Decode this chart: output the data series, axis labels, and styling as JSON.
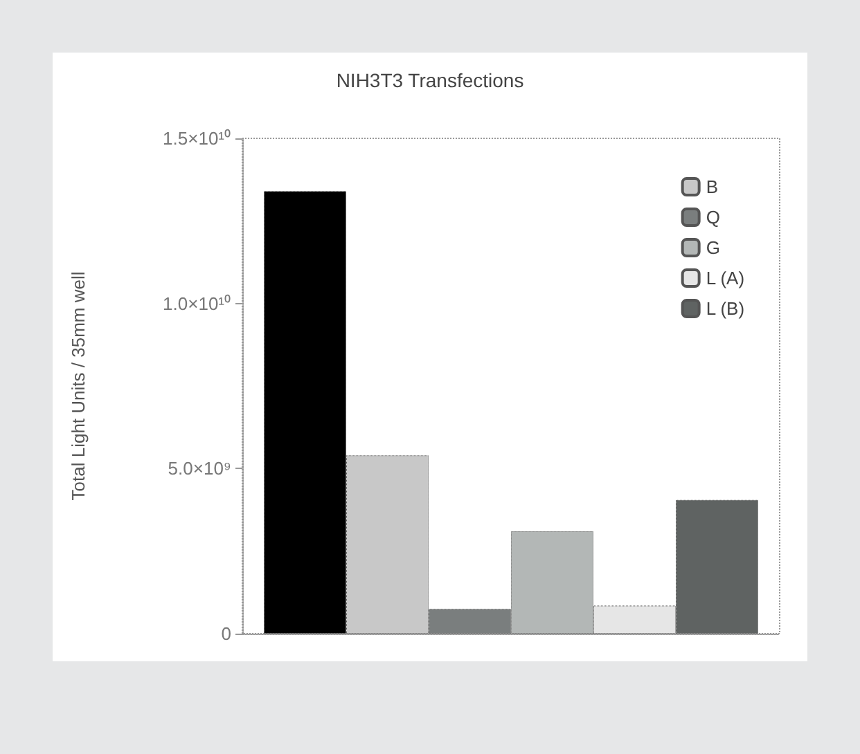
{
  "chart_data": {
    "type": "bar",
    "title": "NIH3T3 Transfections",
    "ylabel": "Total Light Units / 35mm well",
    "categories": [
      null
    ],
    "series": [
      {
        "color": "#000000",
        "values": [
          13400000000
        ]
      },
      {
        "name": "B",
        "color": "#c8c8c8",
        "values": [
          5400000000
        ]
      },
      {
        "name": "Q",
        "color": "#7a7e7e",
        "values": [
          750000000
        ]
      },
      {
        "name": "G",
        "color": "#b3b7b6",
        "values": [
          3100000000
        ]
      },
      {
        "name": "L (A)",
        "color": "#e6e6e6",
        "values": [
          850000000
        ]
      },
      {
        "name": "L (B)",
        "color": "#5f6362",
        "values": [
          4050000000
        ]
      }
    ],
    "ylim": [
      0,
      15000000000
    ],
    "yticks": [
      0,
      {
        "value": 5000000000,
        "label": "5.0×10⁹"
      },
      {
        "value": 10000000000,
        "label": "1.0×10¹⁰"
      },
      {
        "value": 15000000000,
        "label": "1.5×10¹⁰"
      }
    ],
    "grid": false,
    "legend": "top right"
  }
}
